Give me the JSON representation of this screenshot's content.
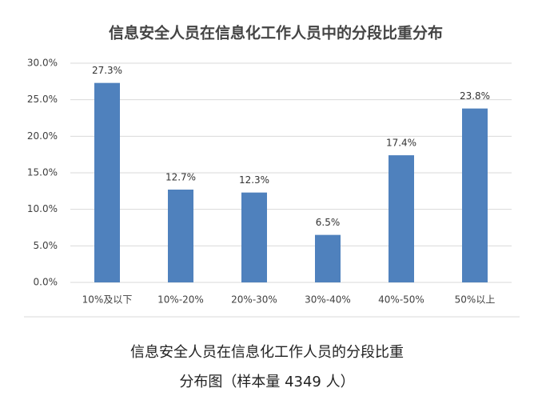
{
  "chart_data": {
    "type": "bar",
    "title": "信息安全人员在信息化工作人员中的分段比重分布",
    "categories": [
      "10%及以下",
      "10%-20%",
      "20%-30%",
      "30%-40%",
      "40%-50%",
      "50%以上"
    ],
    "values": [
      27.3,
      12.7,
      12.3,
      6.5,
      17.4,
      23.8
    ],
    "value_labels": [
      "27.3%",
      "12.7%",
      "12.3%",
      "6.5%",
      "17.4%",
      "23.8%"
    ],
    "color": "#4f81bd",
    "ylim": [
      0,
      30
    ],
    "yticks": [
      {
        "value": 0,
        "label": "0.0%"
      },
      {
        "value": 5,
        "label": "5.0%"
      },
      {
        "value": 10,
        "label": "10.0%"
      },
      {
        "value": 15,
        "label": "15.0%"
      },
      {
        "value": 20,
        "label": "20.0%"
      },
      {
        "value": 25,
        "label": "25.0%"
      },
      {
        "value": 30,
        "label": "30.0%"
      }
    ],
    "grid": true,
    "caption": [
      "信息安全人员在信息化工作人员的分段比重",
      "分布图（样本量 4349 人）"
    ]
  }
}
